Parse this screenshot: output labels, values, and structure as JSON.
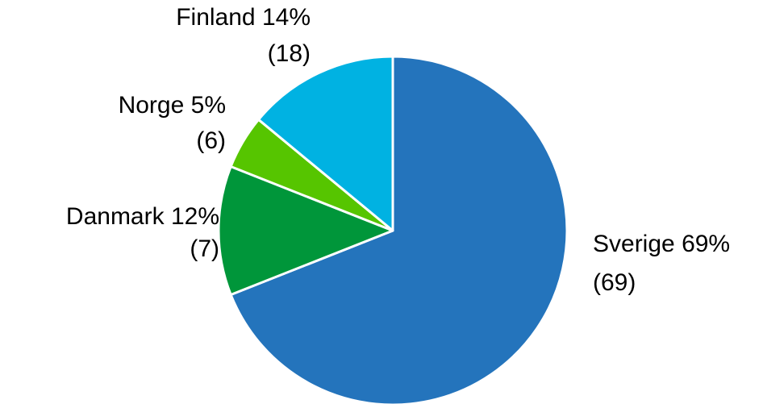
{
  "chart_data": {
    "type": "pie",
    "categories": [
      "Sverige",
      "Danmark",
      "Norge",
      "Finland"
    ],
    "values": [
      69,
      12,
      5,
      14
    ],
    "value_labels": [
      "69%",
      "12%",
      "5%",
      "14%"
    ],
    "count_labels": [
      "(69)",
      "(7)",
      "(6)",
      "(18)"
    ],
    "colors": [
      "#2474bc",
      "#00963a",
      "#56c500",
      "#00b2e2"
    ]
  }
}
